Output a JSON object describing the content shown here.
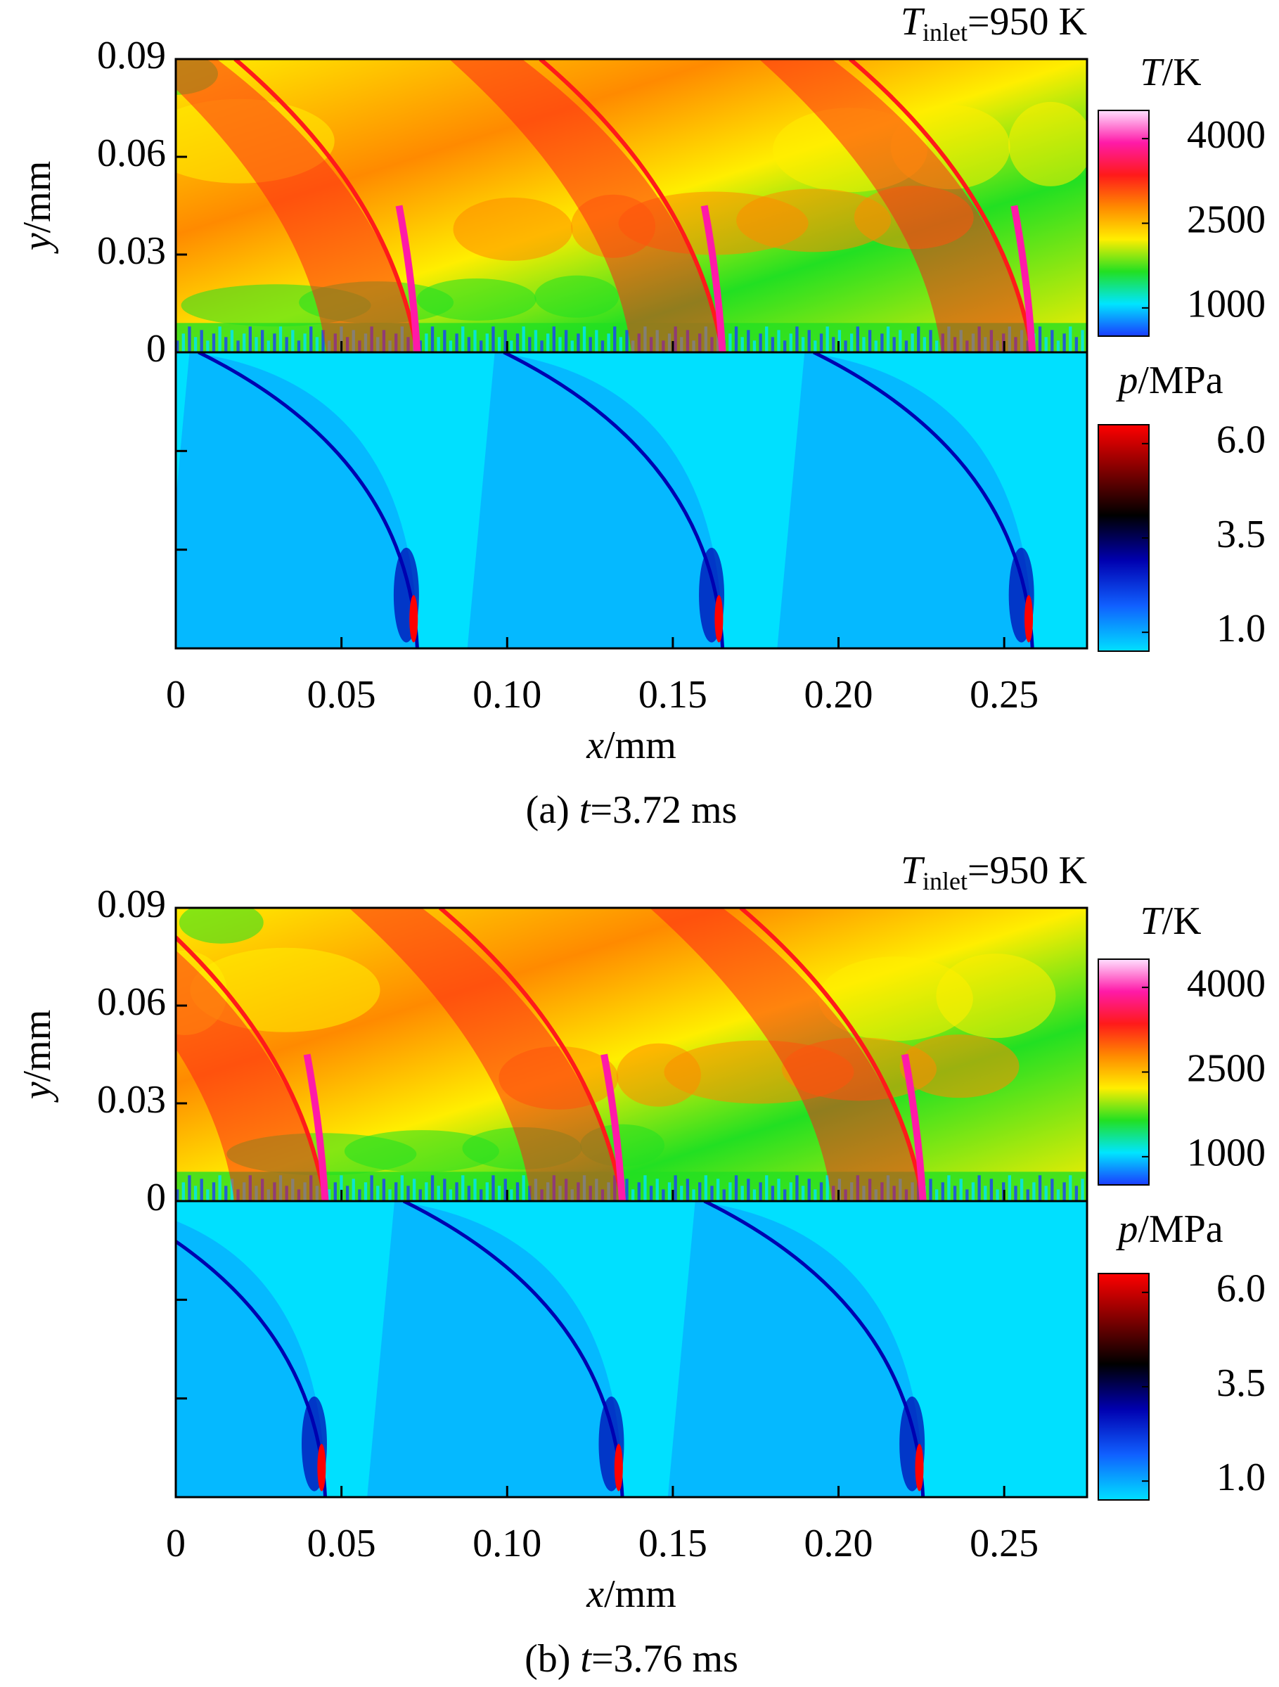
{
  "chart_data": [
    {
      "type": "contour",
      "annotation": {
        "symbol": "T",
        "subscript": "inlet",
        "text": "=950 K"
      },
      "xlabel": {
        "symbol": "x",
        "unit": "/mm"
      },
      "ylabel": {
        "symbol": "y",
        "unit": "/mm"
      },
      "xlim": [
        0,
        0.275
      ],
      "xticks": [
        0,
        0.05,
        {
          "value": 0.1,
          "label": "0.10"
        },
        0.15,
        {
          "value": 0.2,
          "label": "0.20"
        },
        0.25
      ],
      "ylim": [
        0,
        0.09
      ],
      "yticks": [
        0,
        0.03,
        0.06,
        0.09
      ],
      "colorbars": [
        {
          "symbol": "T",
          "unit": "/K",
          "lim": [
            500,
            4500
          ],
          "ticks": [
            1000,
            2500,
            4000
          ],
          "colormap": [
            "#1a3cff",
            "#00e5ff",
            "#22e022",
            "#ffee00",
            "#ff8a00",
            "#ff1a1a",
            "#ff1aa8",
            "#ffe0ff"
          ]
        },
        {
          "symbol": "p",
          "unit": "/MPa",
          "lim": [
            0.5,
            6.5
          ],
          "ticks": [
            {
              "value": 1,
              "label": "1.0"
            },
            3.5,
            {
              "value": 6,
              "label": "6.0"
            }
          ],
          "colormap": [
            "#00e0ff",
            "#1060ff",
            "#0000b0",
            "#000000",
            "#800000",
            "#ff0000"
          ]
        }
      ],
      "caption": {
        "label": "(a)",
        "symbol": "t",
        "text": "=3.72 ms"
      }
    },
    {
      "type": "contour",
      "annotation": {
        "symbol": "T",
        "subscript": "inlet",
        "text": "=950 K"
      },
      "xlabel": {
        "symbol": "x",
        "unit": "/mm"
      },
      "ylabel": {
        "symbol": "y",
        "unit": "/mm"
      },
      "xlim": [
        0,
        0.275
      ],
      "xticks": [
        0,
        0.05,
        {
          "value": 0.1,
          "label": "0.10"
        },
        0.15,
        {
          "value": 0.2,
          "label": "0.20"
        },
        0.25
      ],
      "ylim": [
        0,
        0.09
      ],
      "yticks": [
        0,
        0.03,
        0.06,
        0.09
      ],
      "colorbars": [
        {
          "symbol": "T",
          "unit": "/K",
          "lim": [
            500,
            4500
          ],
          "ticks": [
            1000,
            2500,
            4000
          ],
          "colormap": [
            "#1a3cff",
            "#00e5ff",
            "#22e022",
            "#ffee00",
            "#ff8a00",
            "#ff1a1a",
            "#ff1aa8",
            "#ffe0ff"
          ]
        },
        {
          "symbol": "p",
          "unit": "/MPa",
          "lim": [
            0.5,
            6.5
          ],
          "ticks": [
            {
              "value": 1,
              "label": "1.0"
            },
            3.5,
            {
              "value": 6,
              "label": "6.0"
            }
          ],
          "colormap": [
            "#00e0ff",
            "#1060ff",
            "#0000b0",
            "#000000",
            "#800000",
            "#ff0000"
          ]
        }
      ],
      "caption": {
        "label": "(b)",
        "symbol": "t",
        "text": "=3.76 ms"
      }
    }
  ]
}
